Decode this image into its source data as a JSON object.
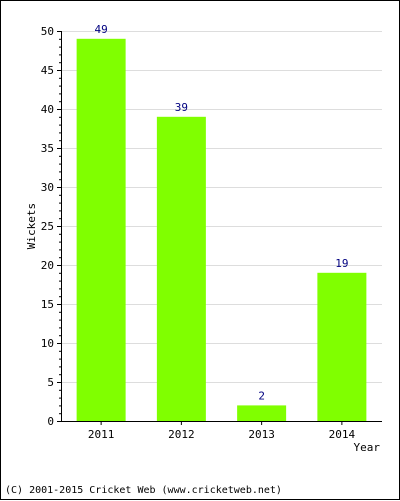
{
  "chart_data": {
    "type": "bar",
    "title": "",
    "xlabel": "Year",
    "ylabel": "Wickets",
    "categories": [
      "2011",
      "2012",
      "2013",
      "2014"
    ],
    "values": [
      49,
      39,
      2,
      19
    ],
    "ylim": [
      0,
      50
    ],
    "yticks": [
      0,
      5,
      10,
      15,
      20,
      25,
      30,
      35,
      40,
      45,
      50
    ],
    "grid": true,
    "bar_color": "#80ff00",
    "label_color": "#000080",
    "legend": "none"
  },
  "footer": "(C) 2001-2015 Cricket Web (www.cricketweb.net)"
}
